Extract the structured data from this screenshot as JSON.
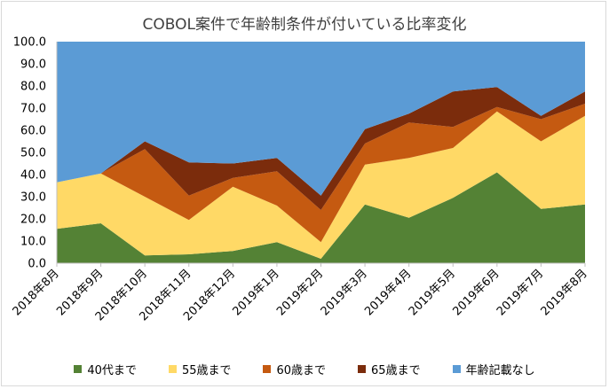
{
  "chart_data": {
    "type": "area",
    "stacked": true,
    "title": "COBOL案件で年齢制条件が付いている比率変化",
    "categories": [
      "2018年8月",
      "2018年9月",
      "2018年10月",
      "2018年11月",
      "2018年12月",
      "2019年1月",
      "2019年2月",
      "2019年3月",
      "2019年4月",
      "2019年5月",
      "2019年6月",
      "2019年7月",
      "2019年8月"
    ],
    "y_ticks": [
      "0.0",
      "10.0",
      "20.0",
      "30.0",
      "40.0",
      "50.0",
      "60.0",
      "70.0",
      "80.0",
      "90.0",
      "100.0"
    ],
    "ylim": [
      0,
      100
    ],
    "grid": false,
    "legend_position": "bottom",
    "series": [
      {
        "name": "40代まで",
        "color": "#548235",
        "values": [
          15.5,
          18,
          3.5,
          4,
          5.5,
          9.5,
          2,
          26.5,
          20.5,
          29.5,
          41,
          24.5,
          26.5
        ]
      },
      {
        "name": "55歳まで",
        "color": "#ffd966",
        "values": [
          21,
          22.5,
          26.5,
          15.5,
          29,
          16.5,
          7.5,
          18,
          27,
          22.5,
          27.5,
          30.5,
          40
        ]
      },
      {
        "name": "60歳まで",
        "color": "#c55a11",
        "values": [
          0,
          0,
          21.5,
          11,
          4,
          15.5,
          14.5,
          9.5,
          16,
          9.5,
          2,
          10,
          5.5
        ]
      },
      {
        "name": "65歳まで",
        "color": "#7b2c0c",
        "values": [
          0,
          0,
          3.5,
          15,
          6.5,
          6,
          6.5,
          6.5,
          4,
          16,
          9,
          1.5,
          5.5
        ]
      },
      {
        "name": "年齢記載なし",
        "color": "#5b9bd5",
        "values": [
          63.5,
          59.5,
          45,
          54.5,
          55,
          52.5,
          69.5,
          39.5,
          32.5,
          22.5,
          20.5,
          33.5,
          22.5
        ]
      }
    ]
  }
}
